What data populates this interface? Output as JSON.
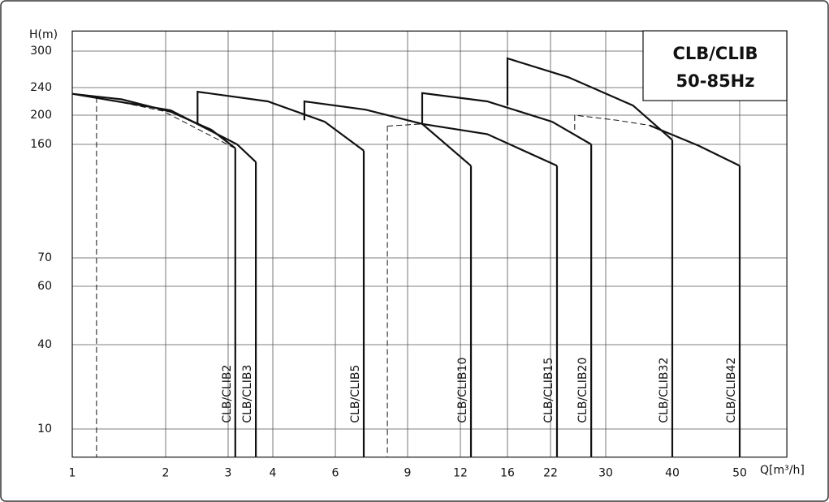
{
  "chart_data": {
    "type": "line",
    "title": "CLB/CLIB",
    "subtitle": "50-85Hz",
    "x_label": "Q[m³/h]",
    "y_label": "H(m)",
    "xlim": [
      1,
      57
    ],
    "ylim": [
      0,
      333
    ],
    "xticks": [
      1,
      2,
      3,
      4,
      6,
      9,
      12,
      16,
      22,
      30,
      40,
      50
    ],
    "yticks": [
      10,
      40,
      60,
      70,
      160,
      200,
      240,
      300
    ],
    "grid": true,
    "color": "#111111",
    "series": [
      {
        "name": "CLB/CLIB2",
        "x": [
          1,
          1.53,
          2.08,
          2.73,
          3.16
        ],
        "values": [
          231,
          223,
          205,
          180,
          157
        ],
        "drop": "end"
      },
      {
        "x": [
          1.26,
          1.97,
          3.2
        ],
        "values": [
          226,
          206,
          156
        ],
        "dashed": true,
        "drop": "start"
      },
      {
        "name": "CLB/CLIB3",
        "x": [
          1,
          2.08,
          3.2,
          3.62
        ],
        "values": [
          231,
          207,
          160,
          146
        ],
        "drop": "end"
      },
      {
        "name": "CLB/CLIB5",
        "x": [
          2.51,
          2.51,
          3.89,
          5.66,
          7.18
        ],
        "values": [
          188,
          234,
          220,
          191,
          155
        ],
        "drop": "end"
      },
      {
        "name": "CLB/CLIB10",
        "x": [
          5.01,
          5.01,
          7.25,
          9.83,
          12.9
        ],
        "values": [
          193,
          220,
          208,
          188,
          143
        ],
        "drop": "end"
      },
      {
        "x": [
          8.16,
          9.83
        ],
        "values": [
          185,
          188
        ],
        "dashed": true,
        "drop": "start"
      },
      {
        "name": "CLB/CLIB15",
        "x": [
          9.83,
          14.28,
          22.94
        ],
        "values": [
          188,
          174,
          143
        ],
        "drop": "end"
      },
      {
        "name": "CLB/CLIB20",
        "x": [
          9.83,
          9.83,
          14.28,
          22.24,
          27.9
        ],
        "values": [
          188,
          232,
          220,
          191,
          160
        ],
        "drop": "end"
      },
      {
        "name": "CLB/CLIB32",
        "x": [
          16,
          16,
          24.6,
          34.1,
          40
        ],
        "values": [
          214,
          288,
          257,
          214,
          166
        ],
        "drop": "end"
      },
      {
        "x": [
          25.5,
          25.5,
          31.7,
          36.6
        ],
        "values": [
          180,
          200,
          193,
          186
        ],
        "dashed": true
      },
      {
        "name": "CLB/CLIB42",
        "x": [
          36.6,
          43.9,
          50
        ],
        "values": [
          186,
          159,
          143
        ],
        "drop": "end"
      }
    ]
  }
}
